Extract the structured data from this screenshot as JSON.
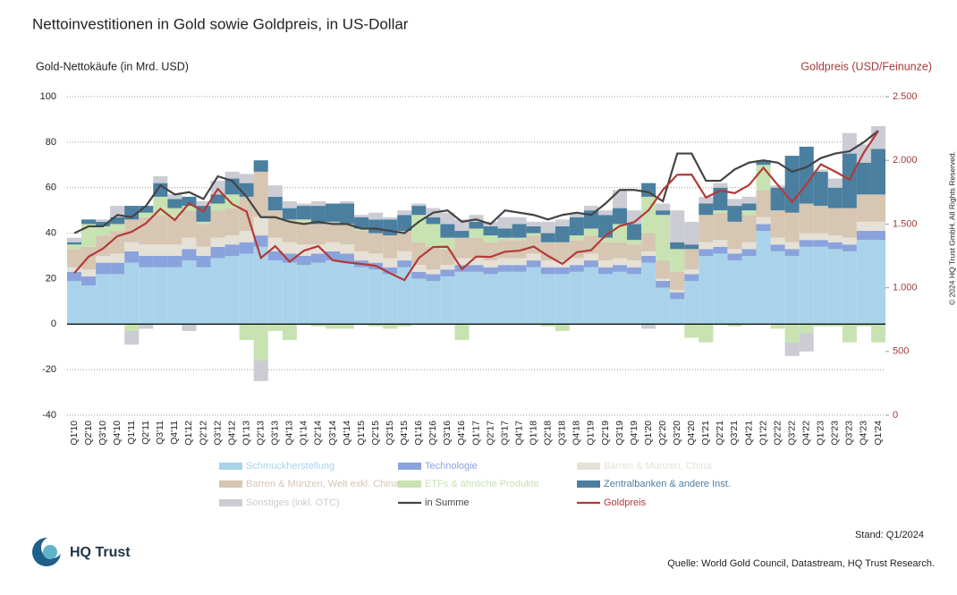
{
  "chart_data": {
    "type": "bar",
    "stacked": true,
    "title": "Nettoinvestitionen in Gold sowie Goldpreis, in US-Dollar",
    "y_label": "Gold-Nettokäufe (in Mrd. USD)",
    "y2_label": "Goldpreis (USD/Feinunze)",
    "stand": "Stand: Q1/2024",
    "source": "Quelle: World Gold Council, Datastream, HQ Trust Research.",
    "copyright": "© 2024 HQ Trust GmbH. All Rights Reserved.",
    "brand": "HQ Trust",
    "grid": true,
    "ylim": [
      -40,
      100
    ],
    "yticks": [
      -40,
      -20,
      0,
      20,
      40,
      60,
      80,
      100
    ],
    "y2lim": [
      0,
      2500
    ],
    "y2ticks": [
      0,
      500,
      {
        "value": 1000,
        "label": "1.000"
      },
      {
        "value": 1500,
        "label": "1.500"
      },
      {
        "value": 2000,
        "label": "2.000"
      },
      {
        "value": 2500,
        "label": "2.500"
      }
    ],
    "categories": [
      "Q1'10",
      "Q2'10",
      "Q3'10",
      "Q4'10",
      "Q1'11",
      "Q2'11",
      "Q3'11",
      "Q4'11",
      "Q1'12",
      "Q2'12",
      "Q3'12",
      "Q4'12",
      "Q1'13",
      "Q2'13",
      "Q3'13",
      "Q4'13",
      "Q1'14",
      "Q2'14",
      "Q3'14",
      "Q4'14",
      "Q1'15",
      "Q2'15",
      "Q3'15",
      "Q4'15",
      "Q1'16",
      "Q2'16",
      "Q3'16",
      "Q4'16",
      "Q1'17",
      "Q2'17",
      "Q3'17",
      "Q4'17",
      "Q1'18",
      "Q2'18",
      "Q3'18",
      "Q4'18",
      "Q1'19",
      "Q2'19",
      "Q3'19",
      "Q4'19",
      "Q1'20",
      "Q2'20",
      "Q3'20",
      "Q4'20",
      "Q1'21",
      "Q2'21",
      "Q3'21",
      "Q4'21",
      "Q1'22",
      "Q2'22",
      "Q3'22",
      "Q4'22",
      "Q1'23",
      "Q2'23",
      "Q3'23",
      "Q4'23",
      "Q1'24"
    ],
    "series": [
      {
        "name": "Schmuckherstellung",
        "color": "#a9d3ea",
        "values": [
          19,
          17,
          22,
          22,
          27,
          25,
          25,
          25,
          28,
          25,
          29,
          30,
          31,
          34,
          28,
          27,
          26,
          27,
          28,
          27,
          25,
          24,
          22,
          25,
          20,
          19,
          21,
          23,
          23,
          22,
          23,
          23,
          25,
          22,
          22,
          23,
          25,
          22,
          23,
          22,
          27,
          16,
          11,
          19,
          30,
          31,
          28,
          30,
          41,
          32,
          30,
          34,
          34,
          33,
          32,
          37,
          37
        ]
      },
      {
        "name": "Technologie",
        "color": "#8aa3dc",
        "values": [
          4,
          4,
          5,
          5,
          5,
          5,
          5,
          5,
          5,
          5,
          5,
          5,
          5,
          5,
          4,
          4,
          4,
          4,
          4,
          4,
          3,
          3,
          3,
          3,
          3,
          3,
          3,
          3,
          3,
          3,
          3,
          3,
          3,
          3,
          3,
          3,
          3,
          3,
          3,
          3,
          3,
          3,
          3,
          3,
          3,
          3,
          3,
          3,
          3,
          3,
          3,
          3,
          3,
          3,
          3,
          4,
          4
        ]
      },
      {
        "name": "Barren & Münzen, China",
        "color": "#e6e1d6",
        "values": [
          2,
          3,
          3,
          4,
          4,
          5,
          5,
          5,
          5,
          4,
          4,
          4,
          5,
          8,
          6,
          5,
          5,
          4,
          4,
          4,
          4,
          4,
          4,
          4,
          3,
          2,
          2,
          3,
          3,
          3,
          3,
          3,
          3,
          3,
          3,
          3,
          3,
          3,
          3,
          3,
          2,
          1,
          1,
          2,
          3,
          3,
          2,
          3,
          3,
          3,
          3,
          3,
          3,
          3,
          3,
          4,
          4
        ]
      },
      {
        "name": "Barren & Münzen, Welt exkl. China",
        "color": "#d6c6b2",
        "values": [
          8,
          10,
          9,
          10,
          10,
          12,
          13,
          12,
          12,
          10,
          12,
          12,
          15,
          20,
          12,
          10,
          10,
          9,
          9,
          9,
          9,
          9,
          10,
          9,
          10,
          10,
          7,
          9,
          9,
          8,
          8,
          8,
          8,
          8,
          8,
          8,
          8,
          8,
          7,
          7,
          8,
          8,
          8,
          9,
          12,
          12,
          12,
          12,
          12,
          12,
          13,
          13,
          12,
          12,
          13,
          12,
          12
        ]
      },
      {
        "name": "ETFs & ähnliche Produkte",
        "color": "#c8e3b1",
        "values": [
          2,
          10,
          4,
          3,
          -3,
          2,
          8,
          4,
          2,
          1,
          3,
          6,
          -7,
          -16,
          -3,
          -7,
          1,
          -1,
          -2,
          -2,
          1,
          -1,
          -2,
          -1,
          12,
          10,
          5,
          -7,
          4,
          3,
          1,
          1,
          1,
          -1,
          -3,
          2,
          3,
          2,
          8,
          2,
          16,
          20,
          10,
          -6,
          -8,
          1,
          -1,
          2,
          11,
          -2,
          -8,
          -4,
          -1,
          -1,
          -8,
          -1,
          -8
        ]
      },
      {
        "name": "Zentralbanken & andere Inst.",
        "color": "#4a7fa0",
        "values": [
          1,
          2,
          2,
          3,
          6,
          3,
          6,
          4,
          4,
          7,
          4,
          7,
          6,
          5,
          6,
          5,
          6,
          8,
          8,
          9,
          5,
          6,
          7,
          7,
          4,
          3,
          6,
          3,
          3,
          4,
          4,
          6,
          3,
          4,
          7,
          8,
          8,
          10,
          7,
          7,
          6,
          2,
          3,
          2,
          5,
          10,
          7,
          3,
          2,
          10,
          25,
          25,
          15,
          9,
          24,
          14,
          20
        ]
      },
      {
        "name": "Sonstiges (inkl. OTC)",
        "color": "#cbccd4",
        "values": [
          2,
          0,
          1,
          5,
          -6,
          -2,
          3,
          2,
          -3,
          2,
          6,
          3,
          4,
          -9,
          5,
          3,
          1,
          2,
          0,
          1,
          1,
          3,
          1,
          2,
          1,
          4,
          5,
          5,
          3,
          2,
          5,
          3,
          2,
          5,
          3,
          2,
          2,
          2,
          8,
          6,
          -2,
          3,
          14,
          10,
          3,
          2,
          3,
          3,
          0,
          1,
          -6,
          -8,
          1,
          4,
          9,
          8,
          10
        ]
      },
      {
        "name": "in Summe",
        "color": "#444444",
        "type": "line",
        "values": [
          40,
          43,
          43,
          48,
          47,
          52,
          61,
          57,
          58,
          55,
          65,
          63,
          56,
          47,
          47,
          45,
          44,
          45,
          44,
          44,
          42,
          42,
          41,
          40,
          45,
          49,
          50,
          45,
          46,
          44,
          50,
          49,
          48,
          46,
          48,
          49,
          48,
          53,
          59,
          59,
          58,
          54,
          75,
          75,
          63,
          63,
          68,
          71,
          72,
          71,
          67,
          69,
          73,
          75,
          76,
          80,
          85
        ]
      },
      {
        "name": "Goldpreis",
        "color": "#b33a3a",
        "type": "line",
        "axis": "y2",
        "values": [
          1115,
          1244,
          1307,
          1405,
          1439,
          1506,
          1620,
          1531,
          1662,
          1598,
          1776,
          1657,
          1598,
          1234,
          1326,
          1204,
          1291,
          1327,
          1216,
          1199,
          1187,
          1172,
          1114,
          1060,
          1233,
          1320,
          1322,
          1146,
          1245,
          1242,
          1283,
          1291,
          1323,
          1250,
          1187,
          1279,
          1295,
          1409,
          1485,
          1515,
          1608,
          1768,
          1887,
          1888,
          1708,
          1763,
          1743,
          1806,
          1942,
          1807,
          1672,
          1812,
          1969,
          1912,
          1848,
          2062,
          2230
        ]
      }
    ]
  }
}
